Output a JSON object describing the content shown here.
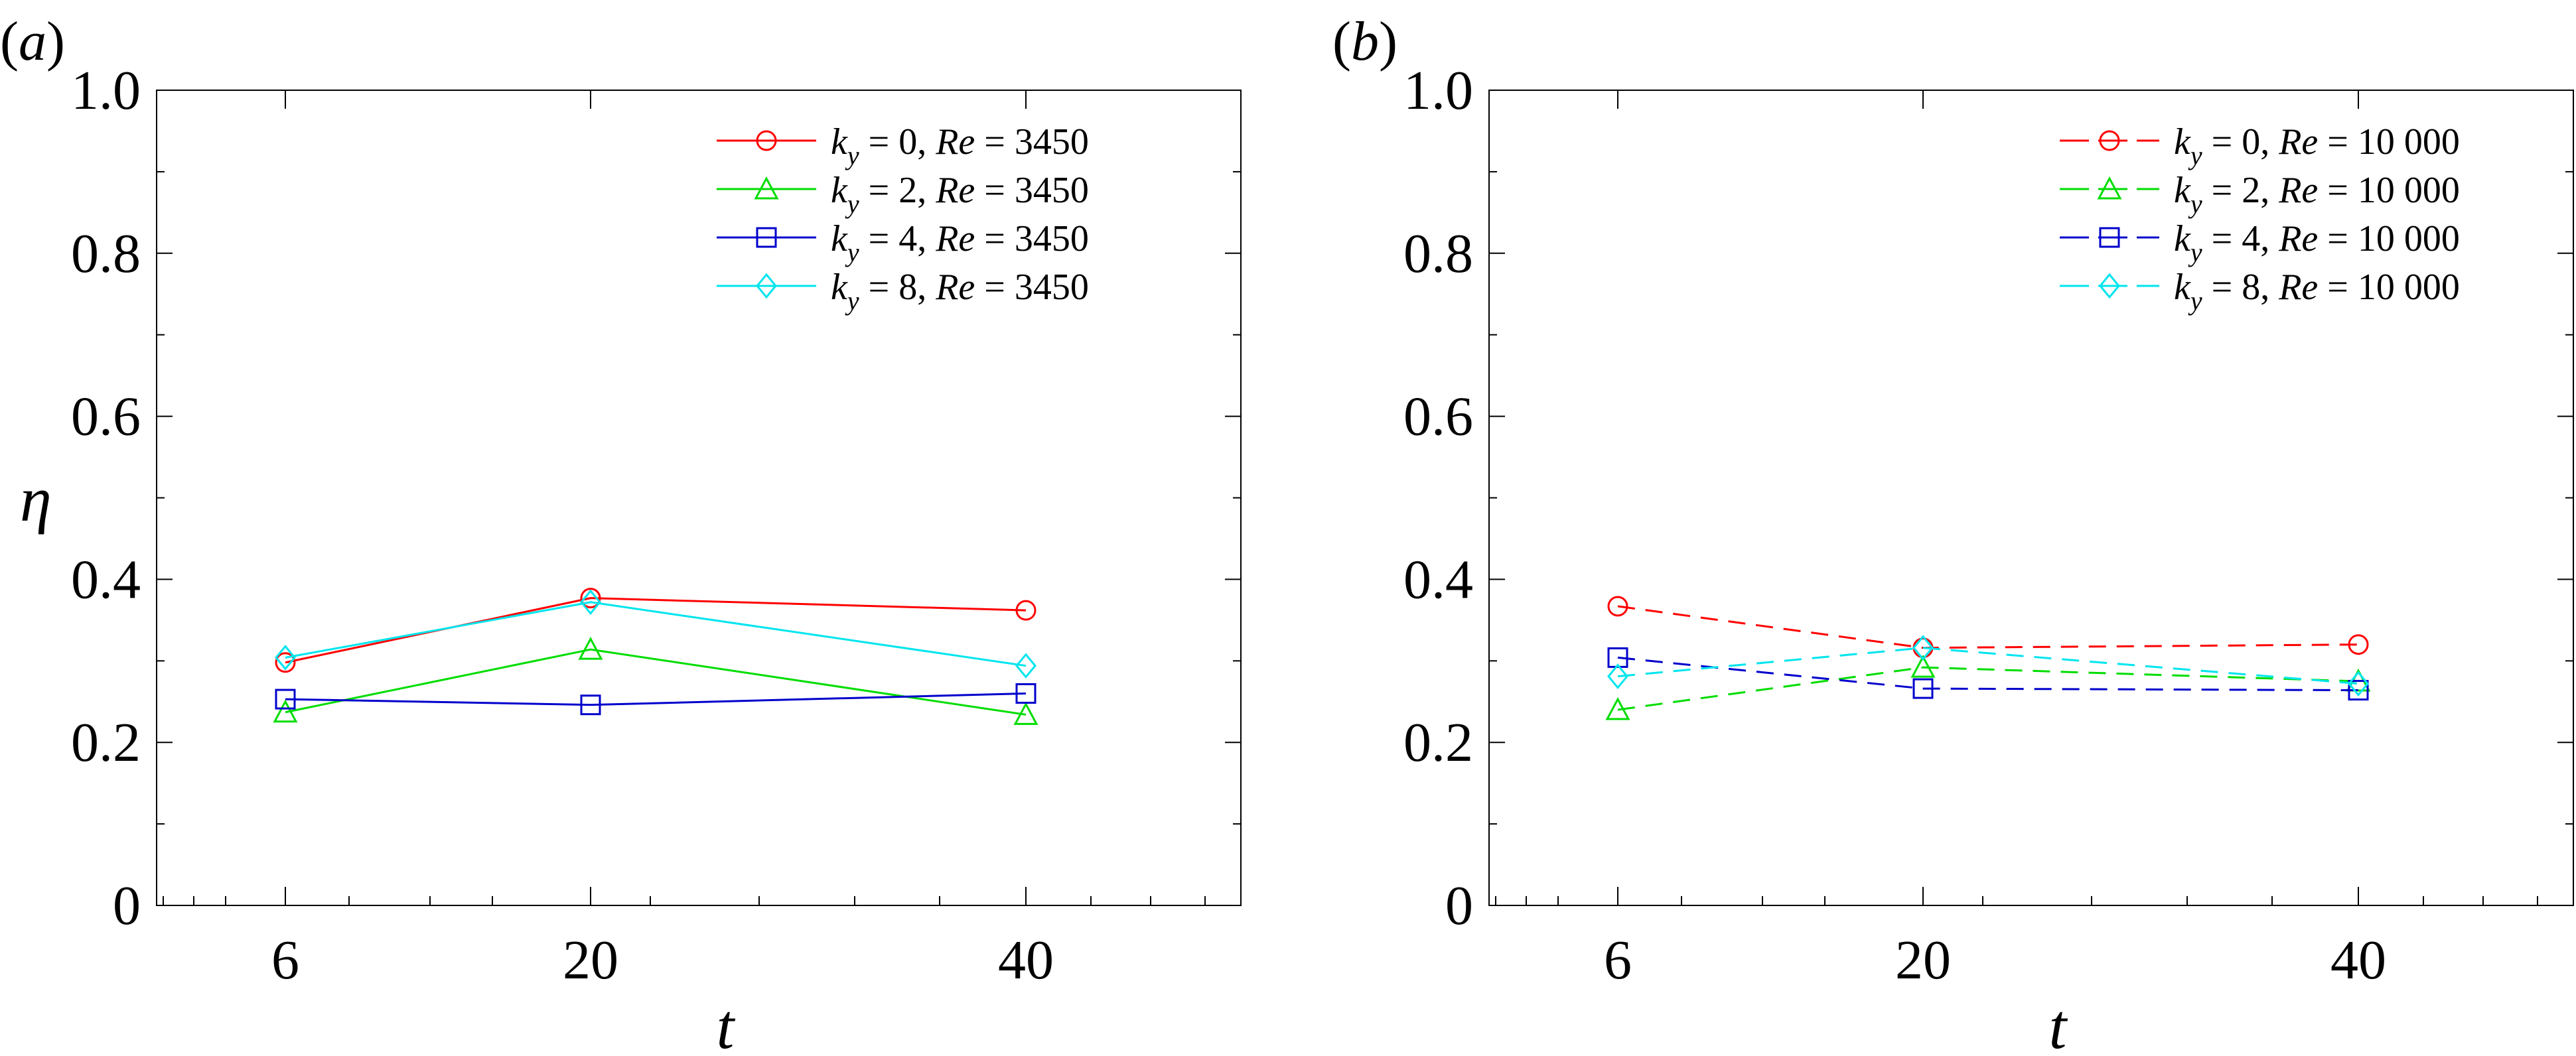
{
  "chart_data": [
    {
      "type": "line",
      "panel_label": "(a)",
      "xlabel": "t",
      "ylabel": "η",
      "x": [
        6,
        20,
        40
      ],
      "xticks": [
        6,
        20,
        40
      ],
      "yticks": [
        "0",
        "0.2",
        "0.4",
        "0.6",
        "0.8",
        "1.0"
      ],
      "ylim": [
        0,
        1.0
      ],
      "legend_position": "top-right",
      "line_style": "solid",
      "series": [
        {
          "k": "0",
          "re": "3450",
          "color": "#ff0000",
          "marker": "circle",
          "values": [
            0.298,
            0.377,
            0.362
          ]
        },
        {
          "k": "2",
          "re": "3450",
          "color": "#00dd00",
          "marker": "triangle",
          "values": [
            0.237,
            0.314,
            0.234
          ]
        },
        {
          "k": "4",
          "re": "3450",
          "color": "#0000cc",
          "marker": "square",
          "values": [
            0.253,
            0.246,
            0.26
          ]
        },
        {
          "k": "8",
          "re": "3450",
          "color": "#00e5ee",
          "marker": "diamond",
          "values": [
            0.304,
            0.372,
            0.294
          ]
        }
      ]
    },
    {
      "type": "line",
      "panel_label": "(b)",
      "xlabel": "t",
      "ylabel": "",
      "x": [
        6,
        20,
        40
      ],
      "xticks": [
        6,
        20,
        40
      ],
      "yticks": [
        "0",
        "0.2",
        "0.4",
        "0.6",
        "0.8",
        "1.0"
      ],
      "ylim": [
        0,
        1.0
      ],
      "legend_position": "top-right",
      "line_style": "dashed",
      "series": [
        {
          "k": "0",
          "re": "10 000",
          "color": "#ff0000",
          "marker": "circle",
          "values": [
            0.367,
            0.316,
            0.32
          ]
        },
        {
          "k": "2",
          "re": "10 000",
          "color": "#00dd00",
          "marker": "triangle",
          "values": [
            0.24,
            0.292,
            0.275
          ]
        },
        {
          "k": "4",
          "re": "10 000",
          "color": "#0000cc",
          "marker": "square",
          "values": [
            0.304,
            0.266,
            0.264
          ]
        },
        {
          "k": "8",
          "re": "10 000",
          "color": "#00e5ee",
          "marker": "diamond",
          "values": [
            0.281,
            0.316,
            0.272
          ]
        }
      ]
    }
  ]
}
